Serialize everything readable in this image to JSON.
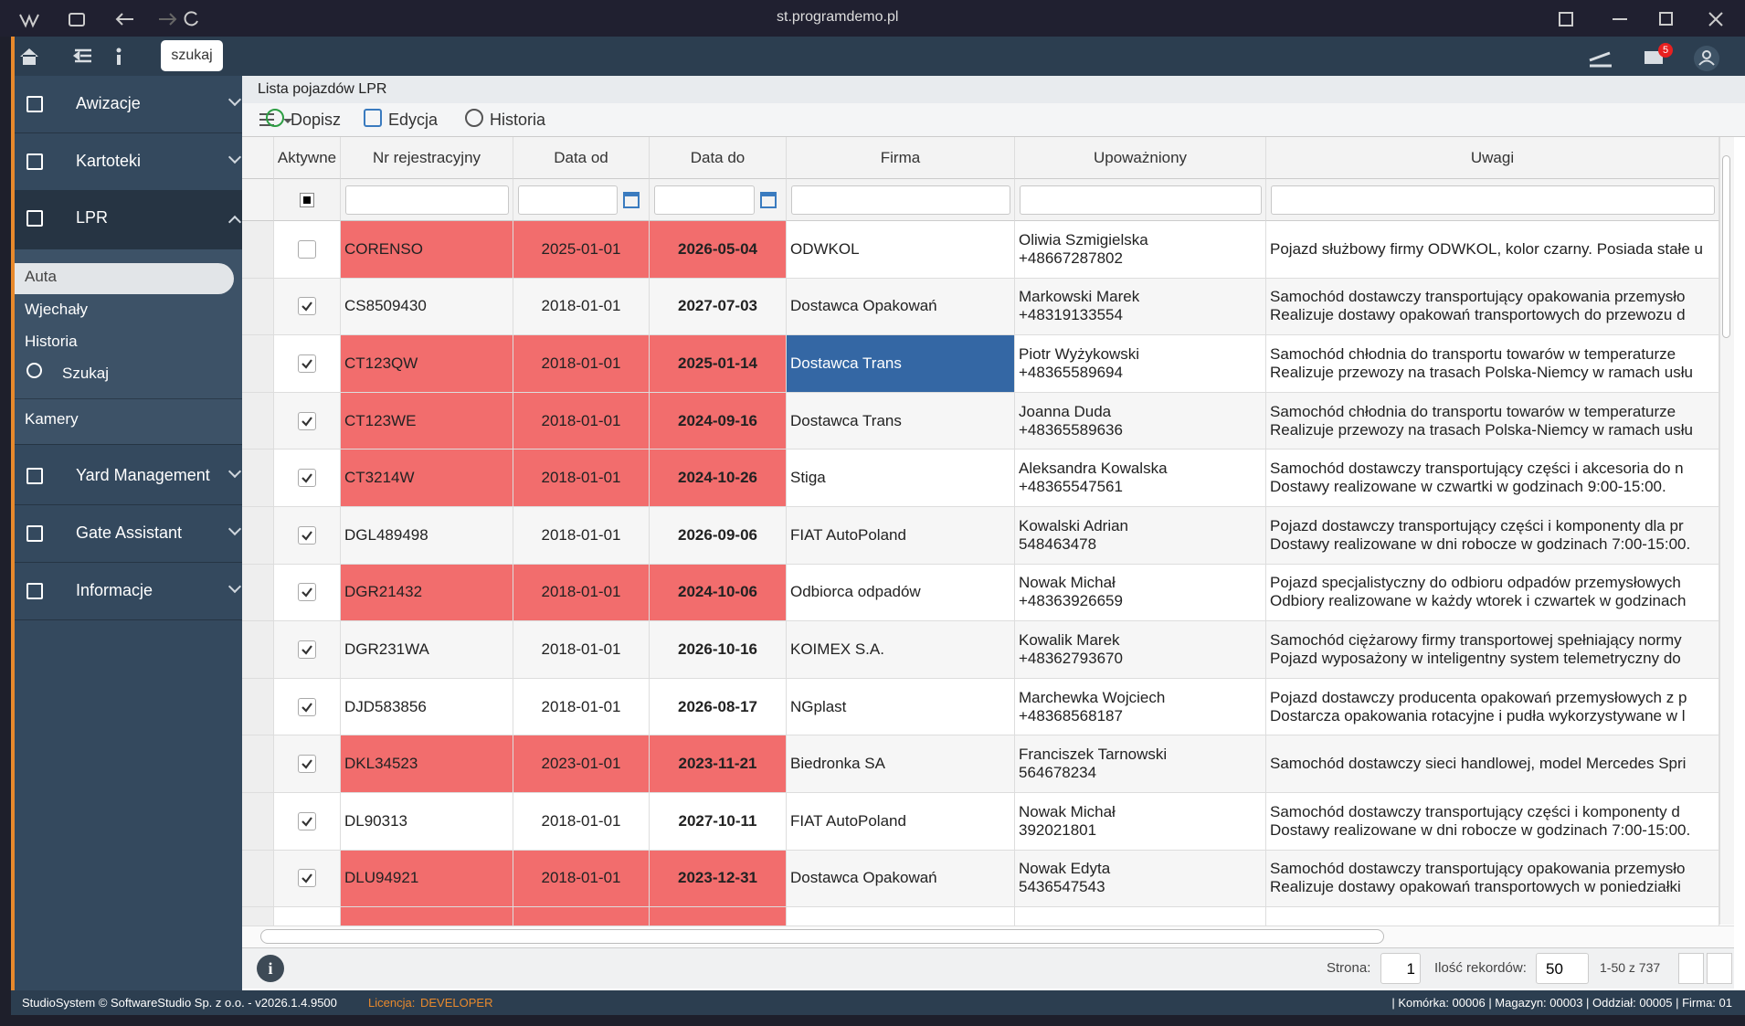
{
  "browser": {
    "url": "st.programdemo.pl"
  },
  "topbar": {
    "search": "szukaj",
    "mail_count": "5"
  },
  "sidebar": {
    "sections": [
      "Awizacje",
      "Kartoteki",
      "LPR"
    ],
    "lpr_items": [
      "Auta",
      "Wjechały",
      "Historia",
      "Szukaj"
    ],
    "camera": "Kamery",
    "more_sections": [
      "Yard Management",
      "Gate Assistant",
      "Informacje"
    ]
  },
  "panel": {
    "title": "Lista pojazdów LPR",
    "toolbar": [
      "Dopisz",
      "Edycja",
      "Historia"
    ]
  },
  "table": {
    "columns": [
      "Aktywne",
      "Nr rejestracyjny",
      "Data od",
      "Data do",
      "Firma",
      "Upoważniony",
      "Uwagi"
    ],
    "rows": [
      {
        "active": false,
        "highlight": true,
        "nr": "CORENSO",
        "from": "2025-01-01",
        "to": "2026-05-04",
        "company": "ODWKOL",
        "person": [
          "Oliwia Szmigielska",
          "+48667287802"
        ],
        "notes": [
          "Pojazd służbowy firmy ODWKOL, kolor czarny. Posiada stałe u"
        ]
      },
      {
        "active": true,
        "highlight": false,
        "nr": "CS8509430",
        "from": "2018-01-01",
        "to": "2027-07-03",
        "company": "Dostawca Opakowań",
        "person": [
          "Markowski Marek",
          "+48319133554"
        ],
        "notes": [
          "Samochód dostawczy transportujący opakowania przemysło",
          "Realizuje dostawy opakowań transportowych do przewozu d"
        ]
      },
      {
        "active": true,
        "highlight": true,
        "selected": true,
        "nr": "CT123QW",
        "from": "2018-01-01",
        "to": "2025-01-14",
        "company": "Dostawca Trans",
        "person": [
          "Piotr Wyżykowski",
          "+48365589694"
        ],
        "notes": [
          "Samochód chłodnia do transportu towarów w temperaturze",
          "Realizuje przewozy na trasach Polska-Niemcy w ramach usłu"
        ]
      },
      {
        "active": true,
        "highlight": true,
        "nr": "CT123WE",
        "from": "2018-01-01",
        "to": "2024-09-16",
        "company": "Dostawca Trans",
        "person": [
          "Joanna Duda",
          "+48365589636"
        ],
        "notes": [
          "Samochód chłodnia do transportu towarów w temperaturze",
          "Realizuje przewozy na trasach Polska-Niemcy w ramach usłu"
        ]
      },
      {
        "active": true,
        "highlight": true,
        "nr": "CT3214W",
        "from": "2018-01-01",
        "to": "2024-10-26",
        "company": "Stiga",
        "person": [
          "Aleksandra Kowalska",
          "+48365547561"
        ],
        "notes": [
          "Samochód dostawczy transportujący części i akcesoria do n",
          "Dostawy realizowane w czwartki w godzinach 9:00-15:00."
        ]
      },
      {
        "active": true,
        "highlight": false,
        "nr": "DGL489498",
        "from": "2018-01-01",
        "to": "2026-09-06",
        "company": "FIAT AutoPoland",
        "person": [
          "Kowalski Adrian",
          "548463478"
        ],
        "notes": [
          "Pojazd dostawczy transportujący części i komponenty dla pr",
          "Dostawy realizowane w dni robocze w godzinach 7:00-15:00."
        ]
      },
      {
        "active": true,
        "highlight": true,
        "nr": "DGR21432",
        "from": "2018-01-01",
        "to": "2024-10-06",
        "company": "Odbiorca odpadów",
        "person": [
          "Nowak Michał",
          "+48363926659"
        ],
        "notes": [
          "Pojazd specjalistyczny do odbioru odpadów przemysłowych",
          "Odbiory realizowane w każdy wtorek i czwartek w godzinach"
        ]
      },
      {
        "active": true,
        "highlight": false,
        "nr": "DGR231WA",
        "from": "2018-01-01",
        "to": "2026-10-16",
        "company": "KOIMEX S.A.",
        "person": [
          "Kowalik Marek",
          "+48362793670"
        ],
        "notes": [
          "Samochód ciężarowy firmy transportowej spełniający normy",
          "Pojazd wyposażony w inteligentny system telemetryczny do"
        ]
      },
      {
        "active": true,
        "highlight": false,
        "nr": "DJD583856",
        "from": "2018-01-01",
        "to": "2026-08-17",
        "company": "NGplast",
        "person": [
          "Marchewka Wojciech",
          "+48368568187"
        ],
        "notes": [
          "Pojazd dostawczy producenta opakowań przemysłowych z p",
          "Dostarcza opakowania rotacyjne i pudła wykorzystywane w l"
        ]
      },
      {
        "active": true,
        "highlight": true,
        "nr": "DKL34523",
        "from": "2023-01-01",
        "to": "2023-11-21",
        "company": "Biedronka SA",
        "person": [
          "Franciszek Tarnowski",
          "564678234"
        ],
        "notes": [
          "Samochód dostawczy sieci handlowej, model Mercedes Spri"
        ]
      },
      {
        "active": true,
        "highlight": false,
        "nr": "DL90313",
        "from": "2018-01-01",
        "to": "2027-10-11",
        "company": "FIAT AutoPoland",
        "person": [
          "Nowak Michał",
          "392021801"
        ],
        "notes": [
          "Samochód dostawczy transportujący części i komponenty d",
          "Dostawy realizowane w dni robocze w godzinach 7:00-15:00."
        ]
      },
      {
        "active": true,
        "highlight": true,
        "nr": "DLU94921",
        "from": "2018-01-01",
        "to": "2023-12-31",
        "company": "Dostawca Opakowań",
        "person": [
          "Nowak Edyta",
          "5436547543"
        ],
        "notes": [
          "Samochód dostawczy transportujący opakowania przemysło",
          "Realizuje dostawy opakowań transportowych w poniedziałki"
        ]
      }
    ]
  },
  "pager": {
    "page_label": "Strona:",
    "page": "1",
    "count_label": "Ilość rekordów:",
    "count": "50",
    "range": "1-50 z 737"
  },
  "status": {
    "copyright": "StudioSystem © SoftwareStudio Sp. z o.o. - v2026.1.4.9500",
    "license_label": "Licencja:",
    "license": "DEVELOPER",
    "info": "| Komórka: 00006 | Magazyn: 00003 | Oddział: 00005 | Firma: 01"
  }
}
